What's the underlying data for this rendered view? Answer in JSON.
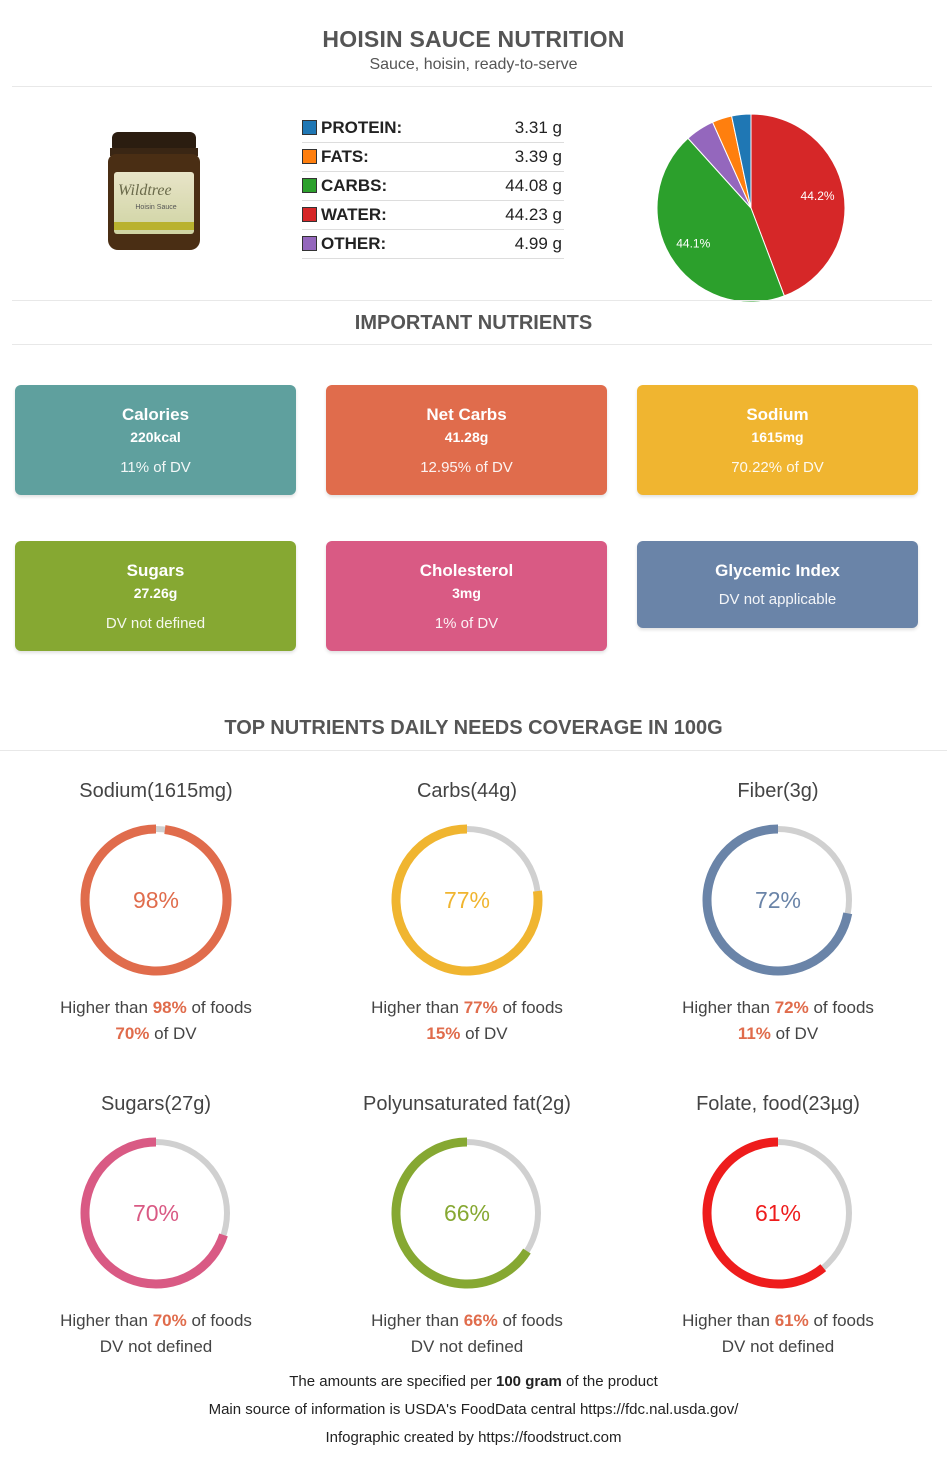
{
  "header": {
    "title": "HOISIN SAUCE NUTRITION",
    "subtitle": "Sauce, hoisin, ready-to-serve"
  },
  "jar": {
    "brand": "Wildtree",
    "product": "Hoisin Sauce"
  },
  "macros": [
    {
      "label": "PROTEIN:",
      "value": "3.31 g",
      "color": "#1f77b4"
    },
    {
      "label": "FATS:",
      "value": "3.39 g",
      "color": "#ff7f0e"
    },
    {
      "label": "CARBS:",
      "value": "44.08 g",
      "color": "#2ca02c"
    },
    {
      "label": "WATER:",
      "value": "44.23 g",
      "color": "#d62728"
    },
    {
      "label": "OTHER:",
      "value": "4.99 g",
      "color": "#9467bd"
    }
  ],
  "chart_data": {
    "type": "pie",
    "slices": [
      {
        "name": "Water",
        "value": 44.23,
        "color": "#d62728",
        "label": "44.2%"
      },
      {
        "name": "Carbs",
        "value": 44.08,
        "color": "#2ca02c",
        "label": "44.1%"
      },
      {
        "name": "Other",
        "value": 4.99,
        "color": "#9467bd",
        "label": ""
      },
      {
        "name": "Fats",
        "value": 3.39,
        "color": "#ff7f0e",
        "label": ""
      },
      {
        "name": "Protein",
        "value": 3.31,
        "color": "#1f77b4",
        "label": ""
      }
    ]
  },
  "important": {
    "title": "IMPORTANT NUTRIENTS",
    "cards": [
      {
        "name": "Calories",
        "value": "220kcal",
        "dv": "11% of DV",
        "color": "#5fa09e"
      },
      {
        "name": "Net Carbs",
        "value": "41.28g",
        "dv": "12.95% of DV",
        "color": "#e06c4c"
      },
      {
        "name": "Sodium",
        "value": "1615mg",
        "dv": "70.22% of DV",
        "color": "#f0b530"
      },
      {
        "name": "Sugars",
        "value": "27.26g",
        "dv": "DV not defined",
        "color": "#86a832"
      },
      {
        "name": "Cholesterol",
        "value": "3mg",
        "dv": "1% of DV",
        "color": "#d95a84"
      },
      {
        "name": "Glycemic Index",
        "value": "",
        "dv": "DV not applicable",
        "color": "#6a84a8"
      }
    ]
  },
  "coverage": {
    "title": "TOP NUTRIENTS DAILY NEEDS COVERAGE IN 100G",
    "gauges": [
      {
        "name": "Sodium(1615mg)",
        "percent": 98,
        "percent_label": "98%",
        "higher_pre": "Higher than ",
        "higher_pct": "98%",
        "higher_post": " of foods",
        "dv_pct": "70%",
        "dv_post": " of DV",
        "dv_text": "",
        "color": "#e06c4c"
      },
      {
        "name": "Carbs(44g)",
        "percent": 77,
        "percent_label": "77%",
        "higher_pre": "Higher than ",
        "higher_pct": "77%",
        "higher_post": " of foods",
        "dv_pct": "15%",
        "dv_post": " of DV",
        "dv_text": "",
        "color": "#f0b530"
      },
      {
        "name": "Fiber(3g)",
        "percent": 72,
        "percent_label": "72%",
        "higher_pre": "Higher than ",
        "higher_pct": "72%",
        "higher_post": " of foods",
        "dv_pct": "11%",
        "dv_post": " of DV",
        "dv_text": "",
        "color": "#6a84a8"
      },
      {
        "name": "Sugars(27g)",
        "percent": 70,
        "percent_label": "70%",
        "higher_pre": "Higher than ",
        "higher_pct": "70%",
        "higher_post": " of foods",
        "dv_pct": "",
        "dv_post": "",
        "dv_text": "DV not defined",
        "color": "#d95a84"
      },
      {
        "name": "Polyunsaturated fat(2g)",
        "percent": 66,
        "percent_label": "66%",
        "higher_pre": "Higher than ",
        "higher_pct": "66%",
        "higher_post": " of foods",
        "dv_pct": "",
        "dv_post": "",
        "dv_text": "DV not defined",
        "color": "#86a832"
      },
      {
        "name": "Folate, food(23µg)",
        "percent": 61,
        "percent_label": "61%",
        "higher_pre": "Higher than ",
        "higher_pct": "61%",
        "higher_post": " of foods",
        "dv_pct": "",
        "dv_post": "",
        "dv_text": "DV not defined",
        "color": "#ee1c1c"
      }
    ]
  },
  "footer": {
    "line1_pre": "The amounts are specified per ",
    "line1_bold": "100 gram",
    "line1_post": " of the product",
    "line2": "Main source of information is USDA's FoodData central https://fdc.nal.usda.gov/",
    "line3": "Infographic created by https://foodstruct.com"
  }
}
